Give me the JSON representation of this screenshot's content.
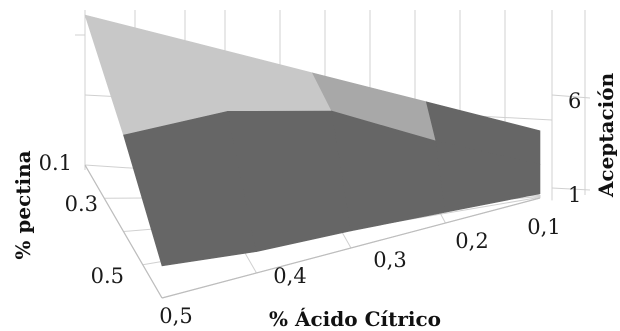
{
  "chart_data": {
    "type": "surface",
    "title": "",
    "x_axis": {
      "label": "% Ácido Cítrico",
      "ticks": [
        "0,5",
        "0,4",
        "0,3",
        "0,2",
        "0,1"
      ]
    },
    "y_axis": {
      "label": "% pectina",
      "ticks": [
        "0.1",
        "0.3",
        "0.5"
      ]
    },
    "z_axis": {
      "label": "Aceptación",
      "ticks": [
        "1",
        "6"
      ],
      "zlim": [
        1,
        8
      ]
    },
    "grid": true,
    "legend": "none",
    "surface": {
      "acido_citrico": [
        0.5,
        0.4,
        0.3,
        0.2,
        0.1
      ],
      "pectina": [
        0.1,
        0.3,
        0.5
      ],
      "aceptacion": [
        [
          8.0,
          7.0,
          6.0,
          5.0,
          4.0
        ],
        [
          5.5,
          6.2,
          5.8,
          4.0,
          2.5
        ],
        [
          2.5,
          2.0,
          1.8,
          1.5,
          1.2
        ]
      ]
    },
    "colors": {
      "upper_band": "#c8c8c8",
      "middle_band": "#a8a8a8",
      "lower_band": "#666666",
      "gridlines": "#d0d0d0"
    }
  }
}
